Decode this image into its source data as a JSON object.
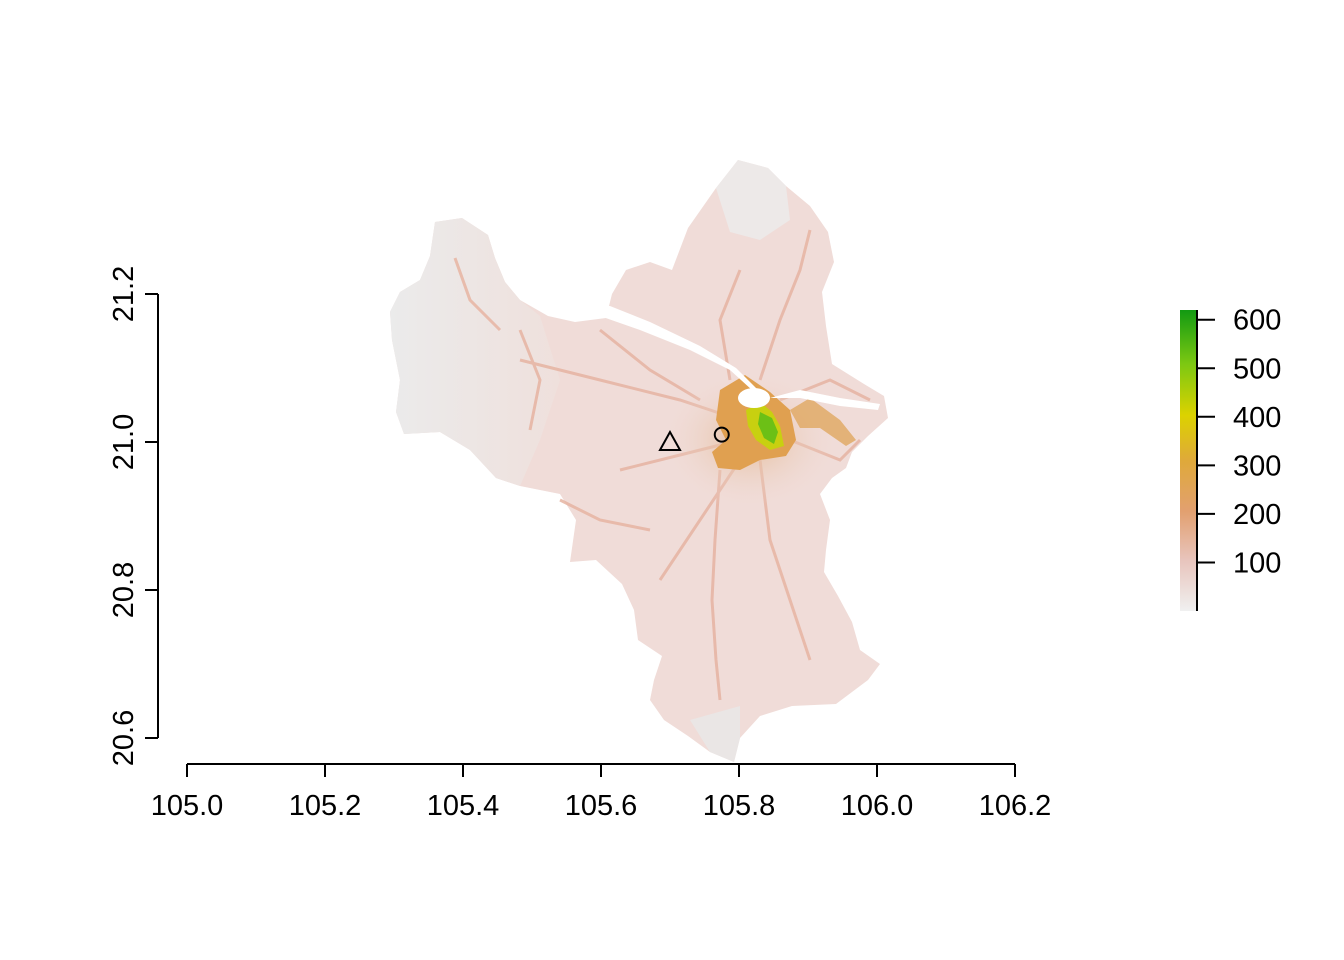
{
  "map": {
    "x_axis": {
      "ticks": [
        "105.0",
        "105.2",
        "105.4",
        "105.6",
        "105.8",
        "106.0",
        "106.2"
      ],
      "range": [
        105.0,
        106.2
      ]
    },
    "y_axis": {
      "ticks": [
        "20.6",
        "20.8",
        "21.0",
        "21.2"
      ],
      "range": [
        20.6,
        21.2
      ]
    },
    "markers": [
      {
        "shape": "triangle",
        "lon": 105.7,
        "lat": 21.0
      },
      {
        "shape": "circle",
        "lon": 105.775,
        "lat": 21.01
      }
    ],
    "legend": {
      "ticks": [
        "100",
        "200",
        "300",
        "400",
        "500",
        "600"
      ],
      "range": [
        0,
        620
      ],
      "colors": [
        "#f0f0f0",
        "#e8c4bc",
        "#e2a070",
        "#dfa93a",
        "#dcd200",
        "#7dc812",
        "#129a12"
      ]
    },
    "region_colors": {
      "background": "#f0dcd8",
      "west": "#ececec",
      "urban": "#e0a050",
      "core": "#a8d020",
      "river": "#ffffff",
      "roads": "#e8b8a8"
    }
  }
}
